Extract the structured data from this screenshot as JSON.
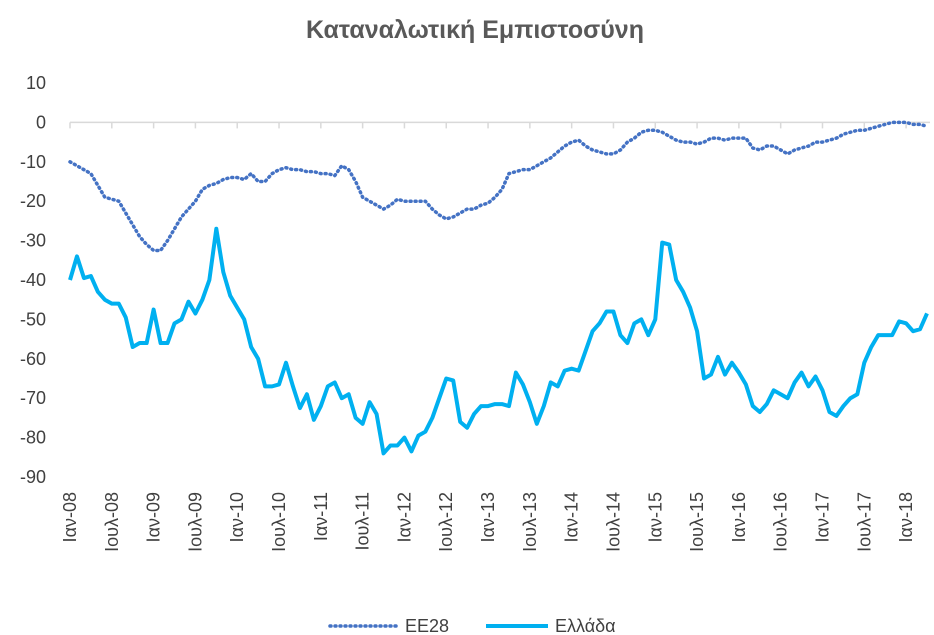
{
  "chart_data": {
    "type": "line",
    "title": "Καταναλωτική Εμπιστοσύνη",
    "categories": [
      "Ιαν-08",
      null,
      null,
      null,
      null,
      null,
      "Ιουλ-08",
      null,
      null,
      null,
      null,
      null,
      "Ιαν-09",
      null,
      null,
      null,
      null,
      null,
      "Ιουλ-09",
      null,
      null,
      null,
      null,
      null,
      "Ιαν-10",
      null,
      null,
      null,
      null,
      null,
      "Ιουλ-10",
      null,
      null,
      null,
      null,
      null,
      "Ιαν-11",
      null,
      null,
      null,
      null,
      null,
      "Ιουλ-11",
      null,
      null,
      null,
      null,
      null,
      "Ιαν-12",
      null,
      null,
      null,
      null,
      null,
      "Ιουλ-12",
      null,
      null,
      null,
      null,
      null,
      "Ιαν-13",
      null,
      null,
      null,
      null,
      null,
      "Ιουλ-13",
      null,
      null,
      null,
      null,
      null,
      "Ιαν-14",
      null,
      null,
      null,
      null,
      null,
      "Ιουλ-14",
      null,
      null,
      null,
      null,
      null,
      "Ιαν-15",
      null,
      null,
      null,
      null,
      null,
      "Ιουλ-15",
      null,
      null,
      null,
      null,
      null,
      "Ιαν-16",
      null,
      null,
      null,
      null,
      null,
      "Ιουλ-16",
      null,
      null,
      null,
      null,
      null,
      "Ιαν-17",
      null,
      null,
      null,
      null,
      null,
      "Ιουλ-17",
      null,
      null,
      null,
      null,
      null,
      "Ιαν-18",
      null,
      null,
      null
    ],
    "series": [
      {
        "name": "ΕΕ28",
        "color": "#4472c4",
        "style": "dotted",
        "values": [
          -10,
          -11,
          -12,
          -13,
          -16,
          -19,
          -19.5,
          -20,
          -23,
          -26,
          -29,
          -31,
          -32.5,
          -32.5,
          -30,
          -27,
          -24,
          -22,
          -20,
          -17,
          -16,
          -15.5,
          -14.5,
          -14,
          -14,
          -14.5,
          -13,
          -15,
          -15,
          -13,
          -12,
          -11.5,
          -12,
          -12,
          -12.5,
          -12.5,
          -13,
          -13,
          -13.5,
          -11,
          -12,
          -15,
          -19,
          -20,
          -21,
          -22,
          -21,
          -19.5,
          -20,
          -20,
          -20,
          -20,
          -22,
          -23.5,
          -24.5,
          -24,
          -23,
          -22,
          -22,
          -21,
          -20.5,
          -19,
          -17,
          -13,
          -12.5,
          -12,
          -12,
          -11,
          -10,
          -9,
          -7.5,
          -6,
          -5,
          -4.5,
          -6,
          -7,
          -7.5,
          -8,
          -8,
          -7,
          -5,
          -4,
          -2.5,
          -2,
          -2,
          -2.5,
          -3.5,
          -4.5,
          -5,
          -5,
          -5.5,
          -5,
          -4,
          -4,
          -4.5,
          -4,
          -4,
          -4,
          -6.5,
          -7,
          -6,
          -6,
          -7,
          -8,
          -7,
          -6.5,
          -6,
          -5,
          -5,
          -4.5,
          -4,
          -3,
          -2.5,
          -2,
          -2,
          -1.5,
          -1,
          -0.5,
          0,
          0,
          0,
          -0.5,
          -0.5,
          -1
        ]
      },
      {
        "name": "Ελλάδα",
        "color": "#00b0f0",
        "style": "solid",
        "values": [
          -40,
          -34,
          -39.5,
          -39,
          -43,
          -45,
          -46,
          -46,
          -49.5,
          -57,
          -56,
          -56,
          -47.5,
          -56,
          -56,
          -51,
          -50,
          -45.5,
          -48.5,
          -45,
          -40,
          -27,
          -38,
          -44,
          -47,
          -50,
          -57,
          -60,
          -67,
          -67,
          -66.5,
          -61,
          -67,
          -72.5,
          -69,
          -75.5,
          -72,
          -67,
          -66,
          -70,
          -69,
          -75,
          -76.5,
          -71,
          -74,
          -84,
          -82,
          -82,
          -80,
          -83.5,
          -79.5,
          -78.5,
          -75,
          -70,
          -65,
          -65.5,
          -76,
          -77.5,
          -74,
          -72,
          -72,
          -71.5,
          -71.5,
          -72,
          -63.5,
          -66.5,
          -71,
          -76.5,
          -72,
          -66,
          -67,
          -63,
          -62.5,
          -63,
          -58,
          -53,
          -51,
          -48,
          -48,
          -54,
          -56,
          -51,
          -50,
          -54,
          -50,
          -30.5,
          -31,
          -40,
          -43,
          -47,
          -53,
          -65,
          -64,
          -59.5,
          -64,
          -61,
          -63.5,
          -66.5,
          -72,
          -73.5,
          -71.5,
          -68,
          -69,
          -70,
          -66,
          -63.5,
          -67,
          -64.5,
          -68,
          -73.5,
          -74.5,
          -72,
          -70,
          -69,
          -61,
          -57,
          -54,
          -54,
          -54,
          -50.5,
          -51,
          -53,
          -52.5,
          -48.5
        ]
      }
    ],
    "ylim": [
      -90,
      10
    ],
    "yticks": [
      -90,
      -80,
      -70,
      -60,
      -50,
      -40,
      -30,
      -20,
      -10,
      0,
      10
    ],
    "legend": "bottom"
  }
}
